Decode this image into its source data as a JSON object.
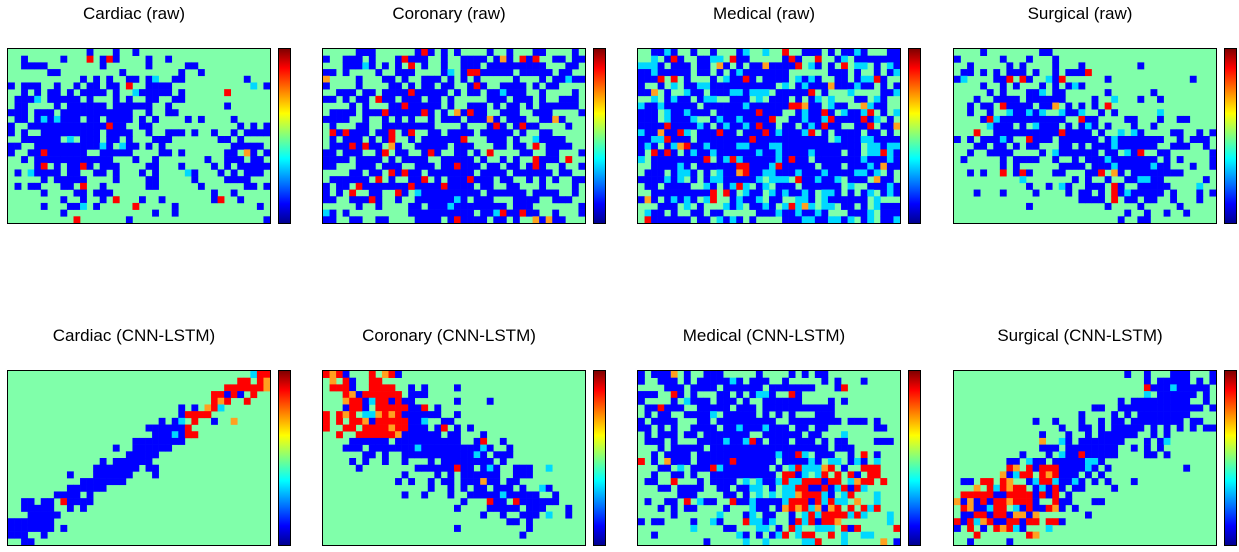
{
  "colors": {
    "background": "#80ffaa",
    "low": "#0000ff",
    "mid": "#00d8ff",
    "high": "#ff0000",
    "warm": "#ffa020"
  },
  "colormap": "jet",
  "colorbar": {
    "shown": true,
    "tick_labels": false
  },
  "chart_data": [
    {
      "type": "heatmap",
      "title": "Cardiac (raw)",
      "grid": false,
      "axes_ticks": false,
      "pattern": "dense low-value blob on left with sparse cells right",
      "dominant_value": "low"
    },
    {
      "type": "heatmap",
      "title": "Coronary (raw)",
      "grid": false,
      "axes_ticks": false,
      "pattern": "scattered low-value cells with a few high values",
      "dominant_value": "low"
    },
    {
      "type": "heatmap",
      "title": "Medical (raw)",
      "grid": false,
      "axes_ticks": false,
      "pattern": "broad low-value cloud with mixed mid/high cells",
      "dominant_value": "low"
    },
    {
      "type": "heatmap",
      "title": "Surgical (raw)",
      "grid": false,
      "axes_ticks": false,
      "pattern": "two low-value clusters",
      "dominant_value": "low"
    },
    {
      "type": "heatmap",
      "title": "Cardiac (CNN-LSTM)",
      "grid": false,
      "axes_ticks": false,
      "pattern": "thin diagonal band bottom-left to top-right, high values at top-right",
      "dominant_value": "low"
    },
    {
      "type": "heatmap",
      "title": "Coronary (CNN-LSTM)",
      "grid": false,
      "axes_ticks": false,
      "pattern": "high-value cluster top-left, low-value band to bottom-right",
      "dominant_value": "low"
    },
    {
      "type": "heatmap",
      "title": "Medical (CNN-LSTM)",
      "grid": false,
      "axes_ticks": false,
      "pattern": "large low-value cloud, high-value cluster bottom-right",
      "dominant_value": "low"
    },
    {
      "type": "heatmap",
      "title": "Surgical (CNN-LSTM)",
      "grid": false,
      "axes_ticks": false,
      "pattern": "diagonal low-value band, high-value cluster bottom-left",
      "dominant_value": "low"
    }
  ]
}
